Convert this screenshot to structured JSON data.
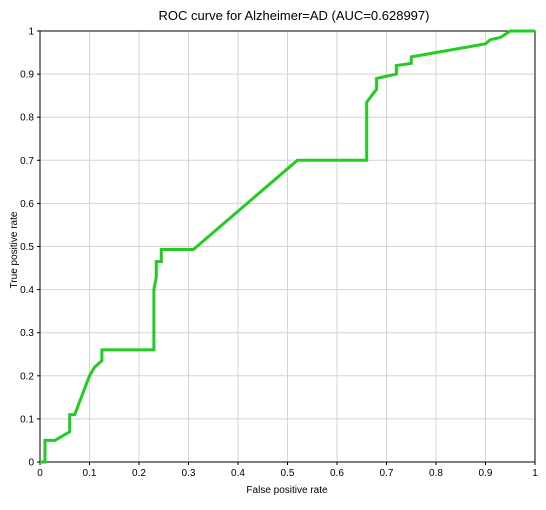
{
  "chart_data": {
    "type": "line",
    "title": "ROC curve for Alzheimer=AD (AUC=0.628997)",
    "xlabel": "False positive rate",
    "ylabel": "True positive rate",
    "xlim": [
      0,
      1
    ],
    "ylim": [
      0,
      1
    ],
    "grid": true,
    "x_ticks": [
      "0",
      "0.1",
      "0.2",
      "0.3",
      "0.4",
      "0.5",
      "0.6",
      "0.7",
      "0.8",
      "0.9",
      "1"
    ],
    "y_ticks": [
      "0",
      "0.1",
      "0.2",
      "0.3",
      "0.4",
      "0.5",
      "0.6",
      "0.7",
      "0.8",
      "0.9",
      "1"
    ],
    "line_color": "#22cc22",
    "series": [
      {
        "x": [
          0,
          0.01,
          0.01,
          0.03,
          0.06,
          0.06,
          0.07,
          0.1,
          0.11,
          0.125,
          0.125,
          0.23,
          0.23,
          0.235,
          0.235,
          0.245,
          0.245,
          0.31,
          0.52,
          0.66,
          0.66,
          0.68,
          0.68,
          0.72,
          0.72,
          0.75,
          0.75,
          0.9,
          0.91,
          0.93,
          0.95,
          1.0
        ],
        "y": [
          0,
          0,
          0.05,
          0.05,
          0.07,
          0.11,
          0.11,
          0.2,
          0.22,
          0.235,
          0.26,
          0.26,
          0.4,
          0.43,
          0.465,
          0.465,
          0.493,
          0.493,
          0.7,
          0.7,
          0.835,
          0.865,
          0.89,
          0.9,
          0.92,
          0.925,
          0.94,
          0.97,
          0.98,
          0.985,
          1.0,
          1.0
        ]
      }
    ]
  }
}
